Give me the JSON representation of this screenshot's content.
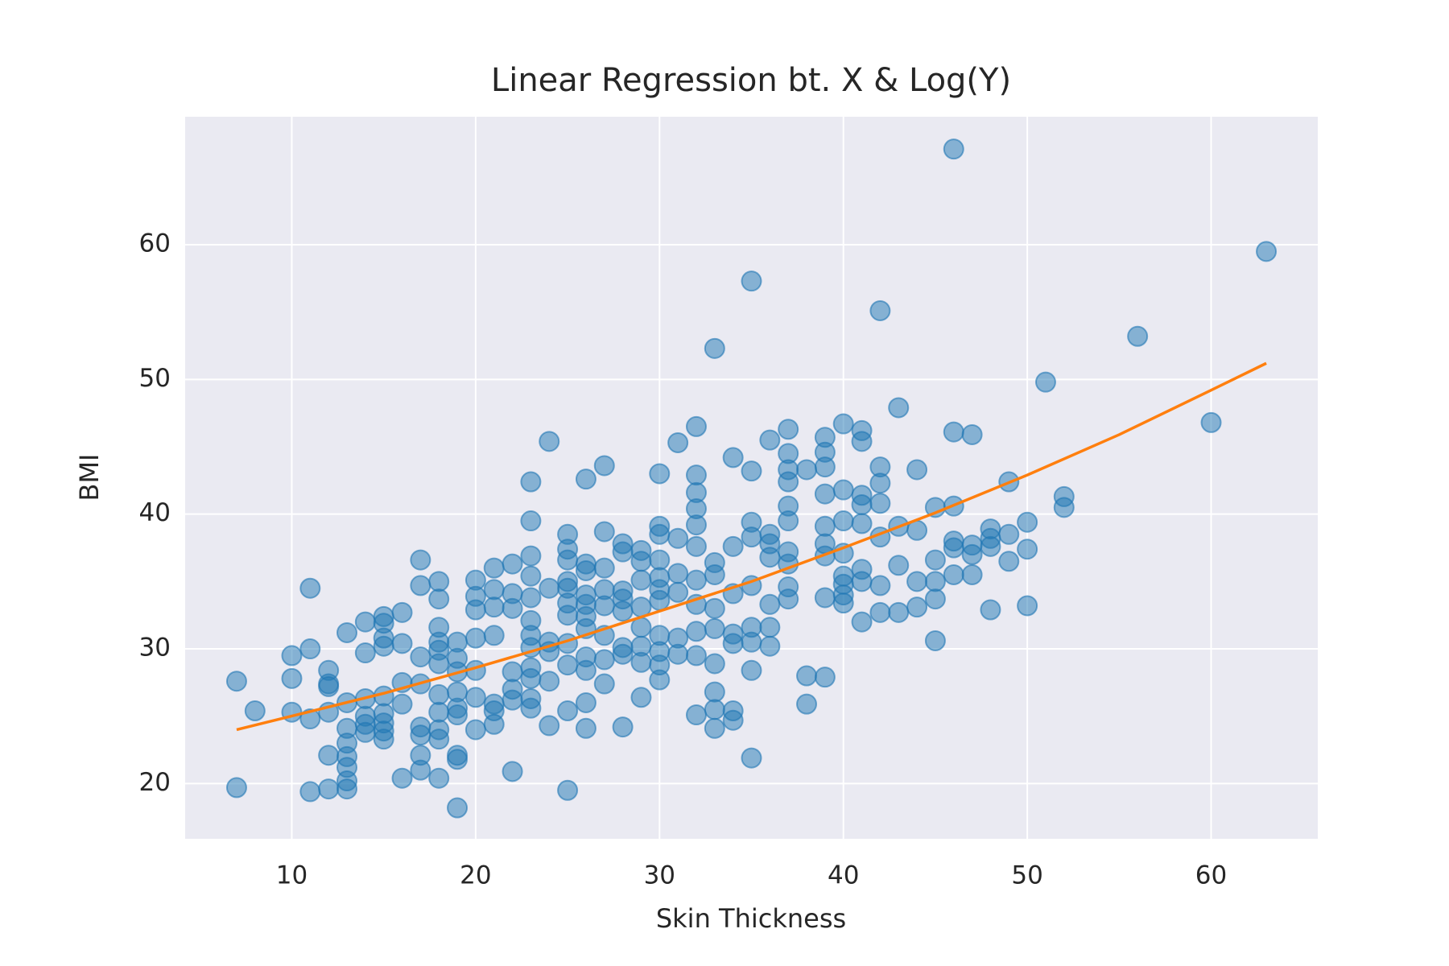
{
  "chart_data": {
    "type": "scatter",
    "title": "Linear Regression bt. X & Log(Y)",
    "x_label": "Skin Thickness",
    "y_label": "BMI",
    "xlim": [
      4.2,
      65.8
    ],
    "ylim": [
      15.9,
      69.5
    ],
    "xticks": [
      10,
      20,
      30,
      40,
      50,
      60
    ],
    "yticks": [
      20,
      30,
      40,
      50,
      60
    ],
    "grid": true,
    "series": [
      {
        "type": "scatter",
        "color": "#1f77b4",
        "x": [
          7,
          7,
          8,
          10,
          10,
          10,
          11,
          11,
          11,
          11,
          12,
          12,
          12,
          12,
          12,
          12,
          13,
          13,
          13,
          13,
          13,
          13,
          13,
          13,
          14,
          14,
          14,
          14,
          14,
          14,
          15,
          15,
          15,
          15,
          15,
          15,
          15,
          15,
          15,
          16,
          16,
          16,
          16,
          16,
          17,
          17,
          17,
          17,
          17,
          17,
          17,
          17,
          18,
          18,
          18,
          18,
          18,
          18,
          18,
          18,
          18,
          18,
          18,
          19,
          19,
          19,
          19,
          19,
          19,
          19,
          19,
          19,
          20,
          20,
          20,
          20,
          20,
          20,
          20,
          21,
          21,
          21,
          21,
          21,
          21,
          21,
          22,
          22,
          22,
          22,
          22,
          22,
          22,
          23,
          23,
          23,
          23,
          23,
          23,
          23,
          23,
          23,
          23,
          23,
          23,
          24,
          24,
          24,
          24,
          24,
          24,
          25,
          25,
          25,
          25,
          25,
          25,
          25,
          25,
          25,
          25,
          25,
          26,
          26,
          26,
          26,
          26,
          26,
          26,
          26,
          26,
          26,
          26,
          27,
          27,
          27,
          27,
          27,
          27,
          27,
          27,
          28,
          28,
          28,
          28,
          28,
          28,
          28,
          28,
          29,
          29,
          29,
          29,
          29,
          29,
          29,
          29,
          30,
          30,
          30,
          30,
          30,
          30,
          30,
          30,
          30,
          30,
          30,
          31,
          31,
          31,
          31,
          31,
          31,
          32,
          32,
          32,
          32,
          32,
          32,
          32,
          32,
          32,
          32,
          32,
          33,
          33,
          33,
          33,
          33,
          33,
          33,
          33,
          33,
          34,
          34,
          34,
          34,
          34,
          34,
          34,
          35,
          35,
          35,
          35,
          35,
          35,
          35,
          35,
          35,
          36,
          36,
          36,
          36,
          36,
          36,
          36,
          37,
          37,
          37,
          37,
          37,
          37,
          37,
          37,
          37,
          37,
          38,
          38,
          38,
          39,
          39,
          39,
          39,
          39,
          39,
          39,
          39,
          39,
          40,
          40,
          40,
          40,
          40,
          40,
          40,
          40,
          41,
          41,
          41,
          41,
          41,
          41,
          41,
          41,
          42,
          42,
          42,
          42,
          42,
          42,
          42,
          43,
          43,
          43,
          43,
          44,
          44,
          44,
          44,
          45,
          45,
          45,
          45,
          45,
          46,
          46,
          46,
          46,
          46,
          46,
          47,
          47,
          47,
          47,
          48,
          48,
          48,
          48,
          49,
          49,
          49,
          50,
          50,
          50,
          51,
          52,
          52,
          56,
          60,
          63
        ],
        "values": [
          27.6,
          19.7,
          25.4,
          29.5,
          27.8,
          25.3,
          34.5,
          30.0,
          24.8,
          19.4,
          28.4,
          27.4,
          27.2,
          25.3,
          22.1,
          19.6,
          31.2,
          26.0,
          24.1,
          23.0,
          22.0,
          21.2,
          20.2,
          19.6,
          32.0,
          29.7,
          26.3,
          25.0,
          24.4,
          23.8,
          32.4,
          31.9,
          30.2,
          30.8,
          26.5,
          25.2,
          24.5,
          23.9,
          23.3,
          32.7,
          30.4,
          27.5,
          25.9,
          20.4,
          36.6,
          34.7,
          29.4,
          27.4,
          24.2,
          23.6,
          22.1,
          21.0,
          35.0,
          33.7,
          31.6,
          30.5,
          29.9,
          28.9,
          26.6,
          25.3,
          24.0,
          23.3,
          20.4,
          30.5,
          29.3,
          28.3,
          26.8,
          25.6,
          25.1,
          22.1,
          21.8,
          18.2,
          35.1,
          33.9,
          32.9,
          30.8,
          28.4,
          26.4,
          24.0,
          36.0,
          34.4,
          33.1,
          31.0,
          25.9,
          25.4,
          24.4,
          36.3,
          34.1,
          33.0,
          28.3,
          27.0,
          26.2,
          20.9,
          42.4,
          39.5,
          36.9,
          35.4,
          33.8,
          32.1,
          31.0,
          30.1,
          28.6,
          27.8,
          26.3,
          25.6,
          45.4,
          34.5,
          30.5,
          29.8,
          27.6,
          24.3,
          38.5,
          37.4,
          36.6,
          35.0,
          34.5,
          33.4,
          32.5,
          30.4,
          28.8,
          25.4,
          19.5,
          42.6,
          36.3,
          35.8,
          34.0,
          33.3,
          32.4,
          31.5,
          29.4,
          28.4,
          26.0,
          24.1,
          43.6,
          38.7,
          36.0,
          34.4,
          33.2,
          31.0,
          29.2,
          27.4,
          37.8,
          37.2,
          34.3,
          33.7,
          32.8,
          30.1,
          29.6,
          24.2,
          37.3,
          36.5,
          35.1,
          33.1,
          31.6,
          30.2,
          29.0,
          26.4,
          43.0,
          39.1,
          38.5,
          36.6,
          35.3,
          34.4,
          33.6,
          31.0,
          29.8,
          28.8,
          27.7,
          45.3,
          38.2,
          35.6,
          34.2,
          30.8,
          29.6,
          46.5,
          42.9,
          41.6,
          40.4,
          39.2,
          37.6,
          35.1,
          33.3,
          31.3,
          29.5,
          25.1,
          52.3,
          36.4,
          35.5,
          33.0,
          31.5,
          28.9,
          26.8,
          25.5,
          24.1,
          44.2,
          37.6,
          34.1,
          31.1,
          30.4,
          25.4,
          24.7,
          57.3,
          43.2,
          39.4,
          38.3,
          34.7,
          31.6,
          30.5,
          28.4,
          21.9,
          45.5,
          38.5,
          37.8,
          36.8,
          33.3,
          31.6,
          30.2,
          46.3,
          44.5,
          43.3,
          42.4,
          40.6,
          39.5,
          37.2,
          36.3,
          34.6,
          33.7,
          43.3,
          28.0,
          25.9,
          45.7,
          44.6,
          43.5,
          41.5,
          39.1,
          37.8,
          36.9,
          33.8,
          27.9,
          46.7,
          41.8,
          39.5,
          37.1,
          35.4,
          34.8,
          34.0,
          33.4,
          46.2,
          45.4,
          41.4,
          40.7,
          39.3,
          35.9,
          35.0,
          32.0,
          55.1,
          43.5,
          42.3,
          40.8,
          38.3,
          34.7,
          32.7,
          47.9,
          39.1,
          36.2,
          32.7,
          43.3,
          38.8,
          35.0,
          33.1,
          40.5,
          36.6,
          35.0,
          33.7,
          30.6,
          67.1,
          46.1,
          40.6,
          38.0,
          37.5,
          35.5,
          45.9,
          37.7,
          37.0,
          35.5,
          38.9,
          38.2,
          37.6,
          32.9,
          42.4,
          38.5,
          36.5,
          39.4,
          37.4,
          33.2,
          49.8,
          41.3,
          40.5,
          53.2,
          46.8,
          59.5
        ]
      },
      {
        "type": "line",
        "color": "#ff7f0e",
        "x": [
          7,
          15,
          20,
          25,
          30,
          35,
          40,
          45,
          50,
          55,
          60,
          63
        ],
        "values": [
          24.0,
          26.7,
          28.6,
          30.6,
          32.8,
          35.0,
          37.5,
          40.1,
          42.9,
          45.9,
          49.2,
          51.2
        ]
      }
    ]
  }
}
